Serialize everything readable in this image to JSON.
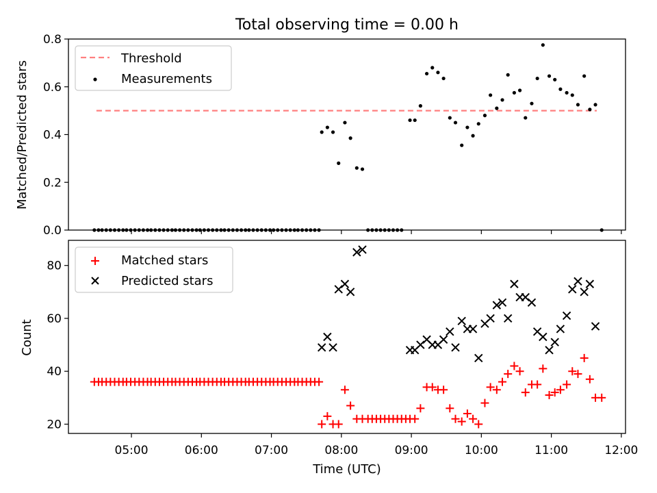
{
  "chart_data": [
    {
      "type": "scatter",
      "title": "Total observing time = 0.00 h",
      "ylabel": "Matched/Predicted stars",
      "xlabel": "",
      "ylim": [
        0,
        0.8
      ],
      "y_ticks": [
        "0.0",
        "0.2",
        "0.4",
        "0.6",
        "0.8"
      ],
      "legend_position": "top-left",
      "threshold": {
        "name": "Threshold",
        "value": 0.5,
        "x_range": [
          4.5,
          11.65
        ],
        "color": "#ff7f7f"
      },
      "series": [
        {
          "name": "Measurements",
          "color": "#000000",
          "marker": "dot",
          "x": [
            4.47,
            4.53,
            4.58,
            4.64,
            4.7,
            4.76,
            4.82,
            4.88,
            4.93,
            4.99,
            5.05,
            5.11,
            5.17,
            5.23,
            5.28,
            5.34,
            5.4,
            5.46,
            5.52,
            5.58,
            5.63,
            5.69,
            5.75,
            5.81,
            5.87,
            5.93,
            5.98,
            6.04,
            6.1,
            6.16,
            6.22,
            6.28,
            6.33,
            6.39,
            6.45,
            6.51,
            6.57,
            6.63,
            6.68,
            6.74,
            6.8,
            6.86,
            6.92,
            6.98,
            7.03,
            7.09,
            7.15,
            7.21,
            7.27,
            7.33,
            7.38,
            7.44,
            7.5,
            7.56,
            7.62,
            7.68,
            7.72,
            7.8,
            7.88,
            7.96,
            8.05,
            8.13,
            8.22,
            8.3,
            8.38,
            8.44,
            8.5,
            8.56,
            8.62,
            8.68,
            8.74,
            8.8,
            8.86,
            8.98,
            9.05,
            9.13,
            9.22,
            9.3,
            9.38,
            9.46,
            9.55,
            9.63,
            9.72,
            9.8,
            9.88,
            9.96,
            10.05,
            10.13,
            10.22,
            10.3,
            10.38,
            10.47,
            10.55,
            10.63,
            10.72,
            10.8,
            10.88,
            10.97,
            11.05,
            11.13,
            11.22,
            11.3,
            11.38,
            11.47,
            11.55,
            11.63,
            11.72
          ],
          "values": [
            0,
            0,
            0,
            0,
            0,
            0,
            0,
            0,
            0,
            0,
            0,
            0,
            0,
            0,
            0,
            0,
            0,
            0,
            0,
            0,
            0,
            0,
            0,
            0,
            0,
            0,
            0,
            0,
            0,
            0,
            0,
            0,
            0,
            0,
            0,
            0,
            0,
            0,
            0,
            0,
            0,
            0,
            0,
            0,
            0,
            0,
            0,
            0,
            0,
            0,
            0,
            0,
            0,
            0,
            0,
            0,
            0.41,
            0.43,
            0.41,
            0.28,
            0.45,
            0.385,
            0.26,
            0.255,
            0,
            0,
            0,
            0,
            0,
            0,
            0,
            0,
            0,
            0.46,
            0.46,
            0.52,
            0.655,
            0.68,
            0.66,
            0.635,
            0.47,
            0.45,
            0.355,
            0.43,
            0.395,
            0.445,
            0.48,
            0.565,
            0.51,
            0.545,
            0.65,
            0.575,
            0.585,
            0.47,
            0.53,
            0.635,
            0.775,
            0.645,
            0.63,
            0.59,
            0.575,
            0.565,
            0.525,
            0.645,
            0.505,
            0.525,
            0
          ]
        }
      ]
    },
    {
      "type": "scatter",
      "title": "",
      "ylabel": "Count",
      "xlabel": "Time (UTC)",
      "ylim": [
        16.5,
        89.5
      ],
      "xlim": [
        4.1,
        12.06
      ],
      "y_ticks": [
        "20",
        "40",
        "60",
        "80"
      ],
      "x_ticks": [
        "05:00",
        "06:00",
        "07:00",
        "08:00",
        "09:00",
        "10:00",
        "11:00",
        "12:00"
      ],
      "legend_position": "top-left",
      "series": [
        {
          "name": "Matched stars",
          "color": "#ff0000",
          "marker": "plus",
          "x": [
            4.47,
            4.53,
            4.58,
            4.64,
            4.7,
            4.76,
            4.82,
            4.88,
            4.93,
            4.99,
            5.05,
            5.11,
            5.17,
            5.23,
            5.28,
            5.34,
            5.4,
            5.46,
            5.52,
            5.58,
            5.63,
            5.69,
            5.75,
            5.81,
            5.87,
            5.93,
            5.98,
            6.04,
            6.1,
            6.16,
            6.22,
            6.28,
            6.33,
            6.39,
            6.45,
            6.51,
            6.57,
            6.63,
            6.68,
            6.74,
            6.8,
            6.86,
            6.92,
            6.98,
            7.03,
            7.09,
            7.15,
            7.21,
            7.27,
            7.33,
            7.38,
            7.44,
            7.5,
            7.56,
            7.62,
            7.68,
            7.72,
            7.8,
            7.88,
            7.96,
            8.05,
            8.13,
            8.22,
            8.3,
            8.38,
            8.44,
            8.5,
            8.56,
            8.62,
            8.68,
            8.74,
            8.8,
            8.86,
            8.92,
            8.98,
            9.05,
            9.13,
            9.22,
            9.3,
            9.38,
            9.46,
            9.55,
            9.63,
            9.72,
            9.8,
            9.88,
            9.96,
            10.05,
            10.13,
            10.22,
            10.3,
            10.38,
            10.47,
            10.55,
            10.63,
            10.72,
            10.8,
            10.88,
            10.97,
            11.05,
            11.13,
            11.22,
            11.3,
            11.38,
            11.47,
            11.55,
            11.63,
            11.72
          ],
          "values": [
            36,
            36,
            36,
            36,
            36,
            36,
            36,
            36,
            36,
            36,
            36,
            36,
            36,
            36,
            36,
            36,
            36,
            36,
            36,
            36,
            36,
            36,
            36,
            36,
            36,
            36,
            36,
            36,
            36,
            36,
            36,
            36,
            36,
            36,
            36,
            36,
            36,
            36,
            36,
            36,
            36,
            36,
            36,
            36,
            36,
            36,
            36,
            36,
            36,
            36,
            36,
            36,
            36,
            36,
            36,
            36,
            20,
            23,
            20,
            20,
            33,
            27,
            22,
            22,
            22,
            22,
            22,
            22,
            22,
            22,
            22,
            22,
            22,
            22,
            22,
            22,
            26,
            34,
            34,
            33,
            33,
            26,
            22,
            21,
            24,
            22,
            20,
            28,
            34,
            33,
            36,
            39,
            42,
            40,
            32,
            35,
            35,
            41,
            31,
            32,
            33,
            35,
            40,
            39,
            45,
            37,
            30,
            30
          ]
        },
        {
          "name": "Predicted stars",
          "color": "#000000",
          "marker": "cross",
          "x": [
            7.72,
            7.8,
            7.88,
            7.96,
            8.05,
            8.13,
            8.22,
            8.3,
            8.98,
            9.05,
            9.13,
            9.22,
            9.3,
            9.38,
            9.46,
            9.55,
            9.63,
            9.72,
            9.8,
            9.88,
            9.96,
            10.05,
            10.13,
            10.22,
            10.3,
            10.38,
            10.47,
            10.55,
            10.63,
            10.72,
            10.8,
            10.88,
            10.97,
            11.05,
            11.13,
            11.22,
            11.3,
            11.38,
            11.47,
            11.55,
            11.63
          ],
          "values": [
            49,
            53,
            49,
            71,
            73,
            70,
            85,
            86,
            48,
            48,
            50,
            52,
            50,
            50,
            52,
            55,
            49,
            59,
            56,
            56,
            45,
            58,
            60,
            65,
            66,
            60,
            73,
            68,
            68,
            66,
            55,
            53,
            48,
            51,
            56,
            61,
            71,
            74,
            70,
            73,
            57
          ]
        }
      ]
    }
  ]
}
